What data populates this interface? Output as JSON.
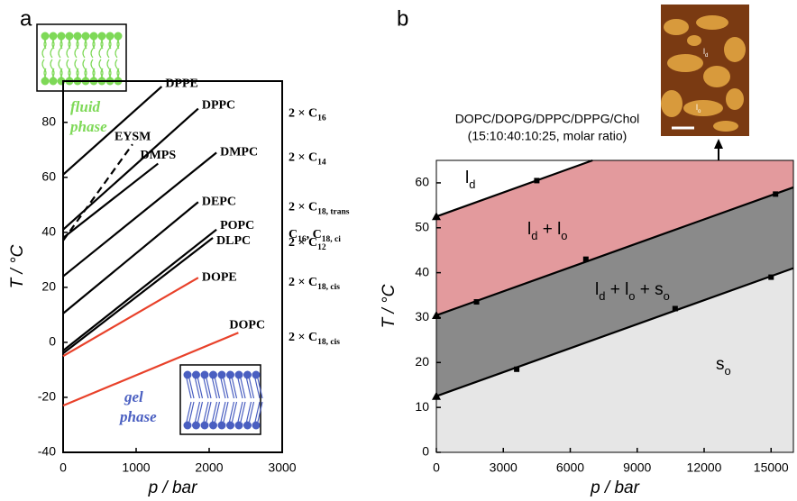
{
  "chart_data": [
    {
      "type": "line",
      "panel": "a",
      "xlabel": "p / bar",
      "ylabel": "T / °C",
      "xlim": [
        0,
        3000
      ],
      "ylim": [
        -40,
        95
      ],
      "xticks": [
        0,
        1000,
        2000,
        3000
      ],
      "yticks": [
        -40,
        -20,
        0,
        20,
        40,
        60,
        80
      ],
      "series": [
        {
          "name": "DPPE",
          "color": "#000000",
          "x": [
            0,
            1350
          ],
          "values": [
            61,
            93
          ]
        },
        {
          "name": "DPPC",
          "color": "#000000",
          "x": [
            0,
            1850
          ],
          "values": [
            41,
            85
          ],
          "chain": [
            "2 × C",
            "16"
          ]
        },
        {
          "name": "EYSM",
          "color": "#000000",
          "dashed": true,
          "x": [
            0,
            950
          ],
          "values": [
            37,
            72
          ]
        },
        {
          "name": "DMPS",
          "color": "#000000",
          "x": [
            0,
            1300
          ],
          "values": [
            38,
            65
          ]
        },
        {
          "name": "DMPC",
          "color": "#000000",
          "x": [
            0,
            2100
          ],
          "values": [
            24,
            69
          ],
          "chain": [
            "2 × C",
            "14"
          ]
        },
        {
          "name": "DEPC",
          "color": "#000000",
          "x": [
            0,
            1850
          ],
          "values": [
            10.5,
            51
          ],
          "chain": [
            "2 × C",
            "18, trans"
          ]
        },
        {
          "name": "POPC",
          "color": "#000000",
          "x": [
            0,
            2100
          ],
          "values": [
            -3,
            41
          ],
          "chain": [
            "C",
            "16",
            ", C",
            "18, ci"
          ]
        },
        {
          "name": "DLPC",
          "color": "#000000",
          "x": [
            0,
            2050
          ],
          "values": [
            -4,
            38
          ],
          "chain": [
            "2 × C",
            "12"
          ]
        },
        {
          "name": "DOPE",
          "color": "#e8412a",
          "x": [
            0,
            1850
          ],
          "values": [
            -5,
            23.5
          ],
          "chain": [
            "2 × C",
            "18, cis"
          ]
        },
        {
          "name": "DOPC",
          "color": "#e8412a",
          "x": [
            0,
            2400
          ],
          "values": [
            -23,
            3.5
          ],
          "chain": [
            "2 × C",
            "18, cis"
          ]
        }
      ],
      "annotations": [
        "fluid",
        "phase",
        "gel",
        "phase"
      ]
    },
    {
      "type": "phase",
      "panel": "b",
      "xlabel": "p / bar",
      "ylabel": "T / °C",
      "xlim": [
        0,
        16000
      ],
      "ylim": [
        0,
        65
      ],
      "xticks": [
        0,
        3000,
        6000,
        9000,
        12000,
        15000
      ],
      "yticks": [
        0,
        10,
        20,
        30,
        40,
        50,
        60
      ],
      "series": [
        {
          "color": "#000000",
          "fill": "#e39a9d",
          "x": [
            0,
            7000
          ],
          "values": [
            52.5,
            65
          ]
        },
        {
          "color": "#000000",
          "fill": "#8a8a8a",
          "x": [
            0,
            16000
          ],
          "values": [
            30.5,
            59
          ]
        },
        {
          "color": "#000000",
          "fill": "#e6e6e6",
          "x": [
            0,
            16000
          ],
          "values": [
            12.5,
            41
          ]
        }
      ],
      "points": {
        "x": [
          4500,
          1800,
          6700,
          15200,
          3600,
          10700,
          15000
        ],
        "values": [
          60.5,
          33.5,
          43,
          57.5,
          18.5,
          32,
          39
        ]
      },
      "starts": {
        "x": [
          0,
          0,
          0
        ],
        "values": [
          52.5,
          30.5,
          12.5
        ]
      },
      "regions": [
        [
          "l",
          "d"
        ],
        [
          "l",
          "d",
          " + l",
          "o"
        ],
        [
          "l",
          "d",
          " + l",
          "o",
          " + s",
          "o"
        ],
        [
          "s",
          "o"
        ]
      ],
      "composition": [
        "DOPC/DOPG/DPPC/DPPG/Chol",
        "(15:10:40:10:25, molar ratio)"
      ],
      "image_labels": [
        [
          "l",
          "d"
        ],
        [
          "l",
          "o"
        ]
      ]
    }
  ]
}
